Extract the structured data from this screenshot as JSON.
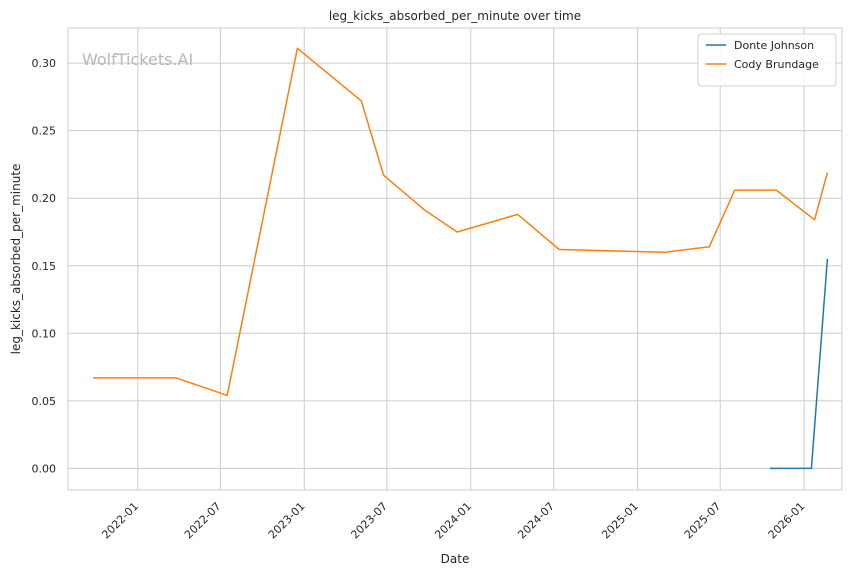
{
  "chart_data": {
    "type": "line",
    "title": "leg_kicks_absorbed_per_minute over time",
    "xlabel": "Date",
    "ylabel": "leg_kicks_absorbed_per_minute",
    "watermark": "WolfTickets.AI",
    "x_ticks": [
      "2022-01",
      "2022-07",
      "2023-01",
      "2023-07",
      "2024-01",
      "2024-07",
      "2025-01",
      "2025-07",
      "2026-01"
    ],
    "y_ticks": [
      "0.00",
      "0.05",
      "0.10",
      "0.15",
      "0.20",
      "0.25",
      "0.30"
    ],
    "xlim": [
      "2021-08-01",
      "2026-03-25"
    ],
    "ylim": [
      -0.016,
      0.326
    ],
    "grid": true,
    "legend_position": "top-right",
    "series": [
      {
        "name": "Donte Johnson",
        "color": "#1f77b4",
        "points": [
          {
            "x": "2025-10-18",
            "y": 0.0
          },
          {
            "x": "2026-01-17",
            "y": 0.0
          },
          {
            "x": "2026-02-21",
            "y": 0.155
          }
        ]
      },
      {
        "name": "Cody Brundage",
        "color": "#ff7f0e",
        "points": [
          {
            "x": "2021-09-25",
            "y": 0.067
          },
          {
            "x": "2022-03-26",
            "y": 0.067
          },
          {
            "x": "2022-07-16",
            "y": 0.054
          },
          {
            "x": "2022-12-17",
            "y": 0.311
          },
          {
            "x": "2023-05-06",
            "y": 0.272
          },
          {
            "x": "2023-06-24",
            "y": 0.217
          },
          {
            "x": "2023-09-23",
            "y": 0.191
          },
          {
            "x": "2023-12-02",
            "y": 0.175
          },
          {
            "x": "2024-04-13",
            "y": 0.188
          },
          {
            "x": "2024-07-13",
            "y": 0.162
          },
          {
            "x": "2025-03-01",
            "y": 0.16
          },
          {
            "x": "2025-06-07",
            "y": 0.164
          },
          {
            "x": "2025-08-02",
            "y": 0.206
          },
          {
            "x": "2025-11-01",
            "y": 0.206
          },
          {
            "x": "2026-01-24",
            "y": 0.184
          },
          {
            "x": "2026-02-21",
            "y": 0.219
          }
        ]
      }
    ]
  }
}
